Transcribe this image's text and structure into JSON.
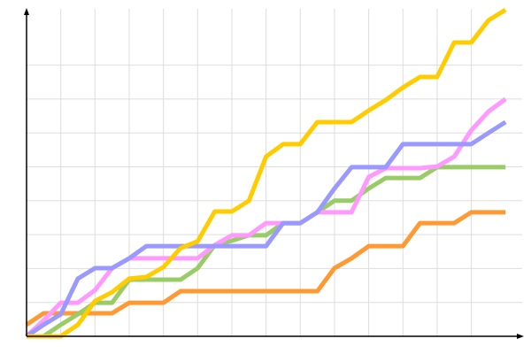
{
  "chart_data": {
    "type": "line",
    "title": "",
    "xlabel": "",
    "ylabel": "",
    "xlim": [
      0,
      29
    ],
    "ylim": [
      0,
      96.6
    ],
    "grid": true,
    "x_grid_step": 2,
    "y_grid_step": 10,
    "x": [
      0,
      1,
      2,
      3,
      4,
      5,
      6,
      7,
      8,
      9,
      10,
      11,
      12,
      13,
      14,
      15,
      16,
      17,
      18,
      19,
      20,
      21,
      22,
      23,
      24,
      25,
      26,
      27,
      28
    ],
    "series": [
      {
        "color": "#ff9933",
        "values": [
          3.4,
          6.8,
          6.8,
          6.8,
          6.8,
          6.8,
          9.9,
          9.9,
          9.9,
          13.3,
          13.3,
          13.3,
          13.3,
          13.3,
          13.3,
          13.3,
          13.3,
          13.3,
          20.1,
          23,
          26.6,
          26.6,
          26.6,
          33.4,
          33.4,
          33.4,
          36.6,
          36.6,
          36.6
        ]
      },
      {
        "color": "#99cc66",
        "values": [
          0,
          0,
          3.4,
          6.5,
          9.9,
          9.9,
          16.7,
          16.7,
          16.7,
          16.7,
          20.1,
          26.9,
          28.2,
          29.8,
          29.8,
          33.4,
          33.4,
          36.6,
          40,
          40,
          43.6,
          46.7,
          46.7,
          46.7,
          49.9,
          49.9,
          49.9,
          49.9,
          49.9
        ]
      },
      {
        "color": "#ff99ff",
        "values": [
          0,
          4.7,
          9.9,
          9.9,
          13.6,
          20.1,
          23,
          23,
          23,
          23,
          23,
          26.9,
          29.8,
          29.8,
          33.4,
          33.4,
          33.4,
          36.6,
          36.6,
          36.6,
          47,
          49.6,
          49.6,
          49.6,
          50.1,
          53,
          60.8,
          66.3,
          70
        ]
      },
      {
        "color": "#9999ff",
        "values": [
          0,
          3.4,
          6.5,
          17,
          20.1,
          20.1,
          23,
          26.6,
          26.6,
          26.6,
          26.6,
          26.6,
          26.6,
          26.6,
          26.6,
          33.4,
          33.4,
          36.6,
          43.6,
          49.9,
          49.9,
          49.9,
          56.7,
          56.7,
          56.7,
          56.7,
          56.7,
          60,
          63.2
        ]
      },
      {
        "color": "#ffcc00",
        "values": [
          0,
          0,
          0,
          3.4,
          10.4,
          13,
          17,
          17.5,
          20.4,
          26,
          28,
          36.8,
          36.8,
          40,
          53,
          56.7,
          56.7,
          63.2,
          63.2,
          63.2,
          66.6,
          69.7,
          73.4,
          76.5,
          76.5,
          86.7,
          86.7,
          93.2,
          96.3
        ]
      }
    ]
  }
}
